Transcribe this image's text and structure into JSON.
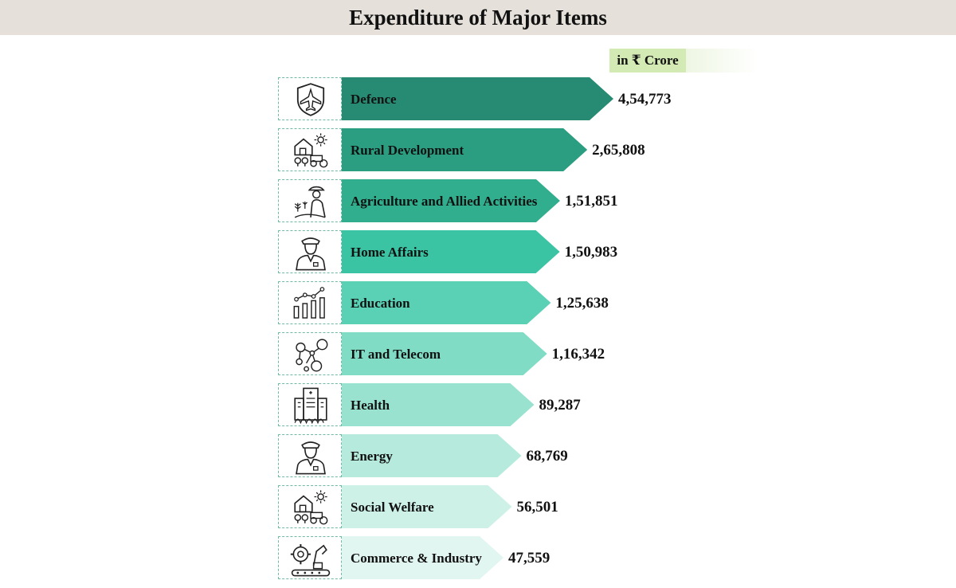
{
  "header": {
    "title": "Expenditure of Major Items"
  },
  "unit": "in ₹ Crore",
  "colors": {
    "title_bg": "#e5e1da",
    "unit_bg": "#d3eab4",
    "bars": [
      "#278a72",
      "#2b9e81",
      "#30ae8d",
      "#3ac4a3",
      "#5ad1b5",
      "#80dcc5",
      "#99e2cf",
      "#b5eadd",
      "#cdf1e7",
      "#e1f6f0"
    ]
  },
  "chart_data": {
    "type": "bar",
    "orientation": "horizontal",
    "title": "Expenditure of Major Items",
    "unit": "in ₹ Crore",
    "categories": [
      "Defence",
      "Rural Development",
      "Agriculture and Allied Activities",
      "Home Affairs",
      "Education",
      "IT and Telecom",
      "Health",
      "Energy",
      "Social Welfare",
      "Commerce & Industry"
    ],
    "values": [
      454773,
      265808,
      151851,
      150983,
      125638,
      116342,
      89287,
      68769,
      56501,
      47559
    ],
    "value_labels": [
      "4,54,773",
      "2,65,808",
      "1,51,851",
      "1,50,983",
      "1,25,638",
      "1,16,342",
      "89,287",
      "68,769",
      "56,501",
      "47,559"
    ],
    "icons": [
      "shield-jet-icon",
      "farm-house-icon",
      "farmer-icon",
      "officer-icon",
      "growth-chart-icon",
      "network-icon",
      "hospital-icon",
      "officer-icon",
      "farm-house-icon",
      "industry-robot-icon"
    ]
  }
}
